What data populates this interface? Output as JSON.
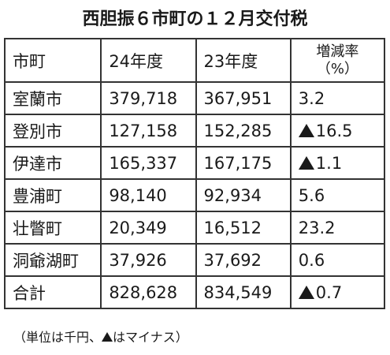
{
  "title": "西胆振６市町の１２月交付税",
  "table": {
    "headers": {
      "name": "市町",
      "y24": "24年度",
      "y23": "23年度",
      "rate_line1": "増減率",
      "rate_line2": "（%）"
    },
    "rows": [
      {
        "name": "室蘭市",
        "y24": "379,718",
        "y23": "367,951",
        "rate": "3.2",
        "negative": false
      },
      {
        "name": "登別市",
        "y24": "127,158",
        "y23": "152,285",
        "rate": "16.5",
        "negative": true
      },
      {
        "name": "伊達市",
        "y24": "165,337",
        "y23": "167,175",
        "rate": "1.1",
        "negative": true
      },
      {
        "name": "豊浦町",
        "y24": "98,140",
        "y23": "92,934",
        "rate": "5.6",
        "negative": false
      },
      {
        "name": "壮瞥町",
        "y24": "20,349",
        "y23": "16,512",
        "rate": "23.2",
        "negative": false
      },
      {
        "name": "洞爺湖町",
        "y24": "37,926",
        "y23": "37,692",
        "rate": "0.6",
        "negative": false
      },
      {
        "name": "合計",
        "y24": "828,628",
        "y23": "834,549",
        "rate": "0.7",
        "negative": true
      }
    ]
  },
  "note": {
    "before": "（単位は千円、",
    "after": "はマイナス）"
  },
  "colors": {
    "text": "#1a1a1a",
    "border": "#333333",
    "background": "#ffffff"
  }
}
